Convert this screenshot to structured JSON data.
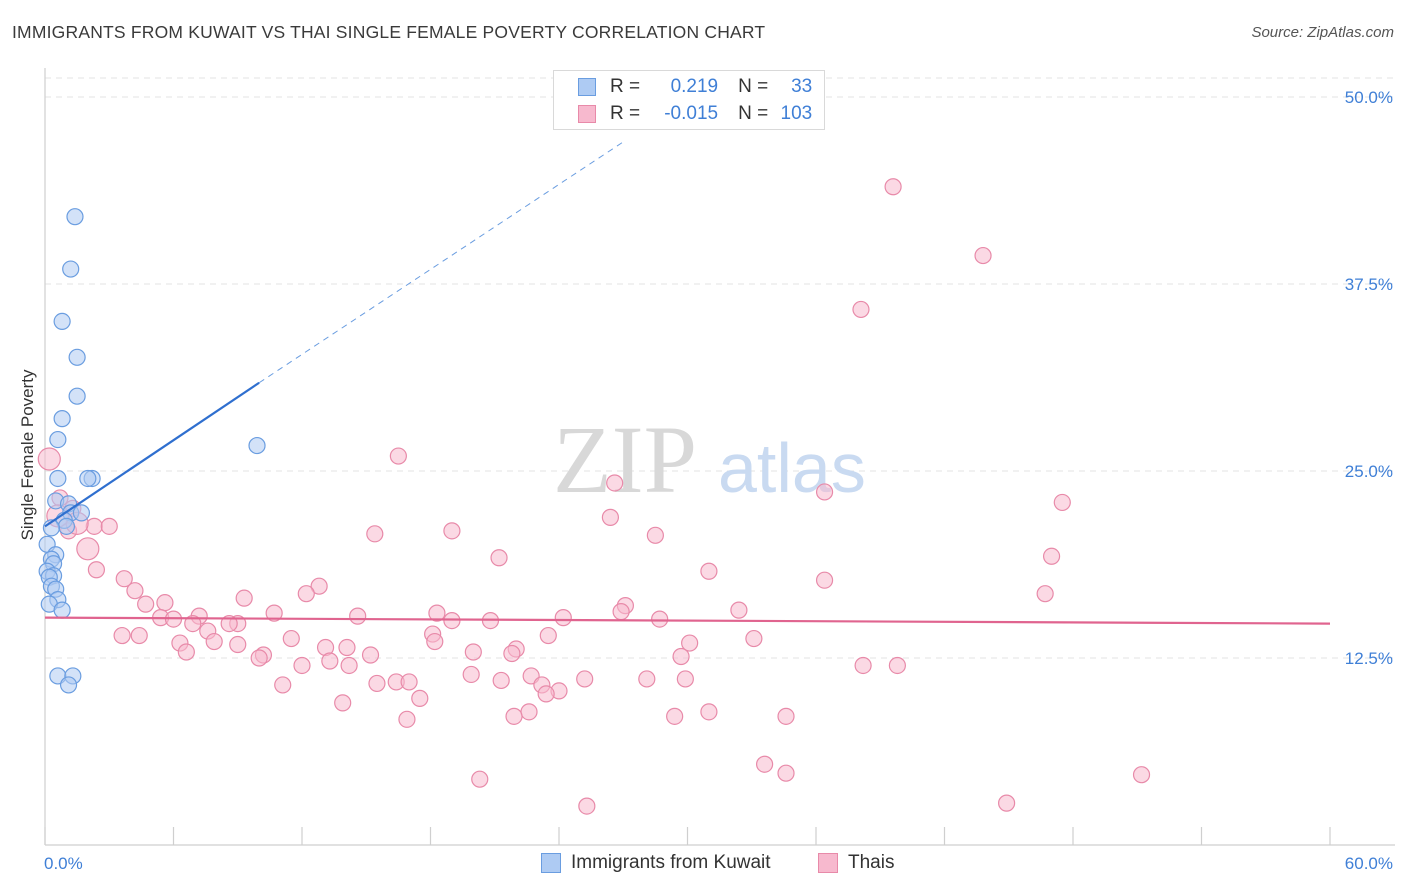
{
  "title": "IMMIGRANTS FROM KUWAIT VS THAI SINGLE FEMALE POVERTY CORRELATION CHART",
  "source": "Source: ZipAtlas.com",
  "watermark": {
    "zip": "ZIP",
    "atlas": "atlas"
  },
  "legend": {
    "rows": [
      {
        "r_label": "R =",
        "r_value": "0.219",
        "n_label": "N =",
        "n_value": "33",
        "fill": "#aecbf3",
        "stroke": "#6a9de0"
      },
      {
        "r_label": "R =",
        "r_value": "-0.015",
        "n_label": "N =",
        "n_value": "103",
        "fill": "#f7b9ce",
        "stroke": "#e88aa9"
      }
    ]
  },
  "bottom_legend": [
    {
      "label": "Immigrants from Kuwait",
      "fill": "#aecbf3",
      "stroke": "#6a9de0"
    },
    {
      "label": "Thais",
      "fill": "#f7b9ce",
      "stroke": "#e88aa9"
    }
  ],
  "chart_data": {
    "type": "scatter",
    "title": "IMMIGRANTS FROM KUWAIT VS THAI SINGLE FEMALE POVERTY CORRELATION CHART",
    "xlabel": "",
    "ylabel": "Single Female Poverty",
    "xlim": [
      0,
      60
    ],
    "ylim": [
      0,
      50
    ],
    "x_tick_labels": [
      "0.0%",
      "60.0%"
    ],
    "y_ticks": [
      12.5,
      25.0,
      37.5,
      50.0
    ],
    "y_tick_labels": [
      "12.5%",
      "25.0%",
      "37.5%",
      "50.0%"
    ],
    "grid": true,
    "legend_position": "top-center",
    "colors": {
      "kuwait": "#6a9de0",
      "kuwait_fill": "#aecbf3",
      "thai": "#e88aa9",
      "thai_fill": "#f7b9ce",
      "kuwait_line": "#2f6fcf",
      "thai_line": "#e0648f",
      "axis_label": "#3f7fd6"
    },
    "series": [
      {
        "name": "Immigrants from Kuwait",
        "points": [
          [
            1.4,
            42.0
          ],
          [
            1.2,
            38.5
          ],
          [
            0.8,
            35.0
          ],
          [
            1.5,
            32.6
          ],
          [
            1.5,
            30.0
          ],
          [
            0.8,
            28.5
          ],
          [
            0.6,
            27.1
          ],
          [
            9.9,
            26.7
          ],
          [
            2.2,
            24.5
          ],
          [
            0.6,
            24.5
          ],
          [
            2.0,
            24.5
          ],
          [
            0.5,
            23.0
          ],
          [
            1.1,
            22.8
          ],
          [
            1.2,
            22.2
          ],
          [
            1.7,
            22.2
          ],
          [
            0.9,
            21.7
          ],
          [
            1.0,
            21.3
          ],
          [
            0.3,
            21.2
          ],
          [
            0.1,
            20.1
          ],
          [
            0.5,
            19.4
          ],
          [
            0.3,
            19.1
          ],
          [
            0.4,
            18.8
          ],
          [
            0.1,
            18.3
          ],
          [
            0.4,
            18.0
          ],
          [
            0.2,
            17.9
          ],
          [
            0.3,
            17.3
          ],
          [
            0.5,
            17.1
          ],
          [
            0.6,
            16.4
          ],
          [
            0.2,
            16.1
          ],
          [
            0.8,
            15.7
          ],
          [
            0.6,
            11.3
          ],
          [
            1.3,
            11.3
          ],
          [
            1.1,
            10.7
          ]
        ],
        "trend": {
          "x0": 0.0,
          "y0": 21.3,
          "x1": 10.0,
          "y1": 30.9,
          "dashed_to_x": 27.0,
          "dashed_to_y": 47.0
        }
      },
      {
        "name": "Thais",
        "points": [
          [
            39.6,
            44.0
          ],
          [
            43.8,
            39.4
          ],
          [
            38.1,
            35.8
          ],
          [
            16.5,
            26.0
          ],
          [
            26.6,
            24.2
          ],
          [
            36.4,
            23.6
          ],
          [
            47.5,
            22.9
          ],
          [
            0.7,
            23.2
          ],
          [
            1.3,
            22.5
          ],
          [
            2.3,
            21.3
          ],
          [
            1.1,
            21.0
          ],
          [
            3.0,
            21.3
          ],
          [
            26.4,
            21.9
          ],
          [
            19.0,
            21.0
          ],
          [
            15.4,
            20.8
          ],
          [
            28.5,
            20.7
          ],
          [
            2.0,
            19.8
          ],
          [
            21.2,
            19.2
          ],
          [
            47.0,
            19.3
          ],
          [
            31.0,
            18.3
          ],
          [
            2.4,
            18.4
          ],
          [
            3.7,
            17.8
          ],
          [
            36.4,
            17.7
          ],
          [
            12.8,
            17.3
          ],
          [
            4.2,
            17.0
          ],
          [
            12.2,
            16.8
          ],
          [
            46.7,
            16.8
          ],
          [
            9.3,
            16.5
          ],
          [
            5.6,
            16.2
          ],
          [
            27.1,
            16.0
          ],
          [
            4.7,
            16.1
          ],
          [
            32.4,
            15.7
          ],
          [
            18.3,
            15.5
          ],
          [
            26.9,
            15.6
          ],
          [
            10.7,
            15.5
          ],
          [
            7.2,
            15.3
          ],
          [
            14.6,
            15.3
          ],
          [
            5.4,
            15.2
          ],
          [
            24.2,
            15.2
          ],
          [
            28.7,
            15.1
          ],
          [
            6.0,
            15.1
          ],
          [
            19.0,
            15.0
          ],
          [
            20.8,
            15.0
          ],
          [
            6.9,
            14.8
          ],
          [
            9.0,
            14.8
          ],
          [
            8.6,
            14.8
          ],
          [
            7.6,
            14.3
          ],
          [
            3.6,
            14.0
          ],
          [
            4.4,
            14.0
          ],
          [
            18.1,
            14.1
          ],
          [
            23.5,
            14.0
          ],
          [
            11.5,
            13.8
          ],
          [
            33.1,
            13.8
          ],
          [
            18.2,
            13.6
          ],
          [
            6.3,
            13.5
          ],
          [
            7.9,
            13.6
          ],
          [
            9.0,
            13.4
          ],
          [
            13.1,
            13.2
          ],
          [
            14.1,
            13.2
          ],
          [
            30.1,
            13.5
          ],
          [
            22.0,
            13.1
          ],
          [
            6.6,
            12.9
          ],
          [
            20.0,
            12.9
          ],
          [
            10.2,
            12.7
          ],
          [
            15.2,
            12.7
          ],
          [
            21.8,
            12.8
          ],
          [
            29.7,
            12.6
          ],
          [
            10.0,
            12.5
          ],
          [
            13.3,
            12.3
          ],
          [
            12.0,
            12.0
          ],
          [
            14.2,
            12.0
          ],
          [
            38.2,
            12.0
          ],
          [
            39.8,
            12.0
          ],
          [
            19.9,
            11.4
          ],
          [
            22.7,
            11.3
          ],
          [
            25.2,
            11.1
          ],
          [
            28.1,
            11.1
          ],
          [
            21.3,
            11.0
          ],
          [
            29.9,
            11.1
          ],
          [
            15.5,
            10.8
          ],
          [
            16.4,
            10.9
          ],
          [
            17.0,
            10.9
          ],
          [
            11.1,
            10.7
          ],
          [
            23.2,
            10.7
          ],
          [
            24.0,
            10.3
          ],
          [
            23.4,
            10.1
          ],
          [
            17.5,
            9.8
          ],
          [
            13.9,
            9.5
          ],
          [
            22.6,
            8.9
          ],
          [
            31.0,
            8.9
          ],
          [
            16.9,
            8.4
          ],
          [
            21.9,
            8.6
          ],
          [
            29.4,
            8.6
          ],
          [
            34.6,
            8.6
          ],
          [
            33.6,
            5.4
          ],
          [
            34.6,
            4.8
          ],
          [
            51.2,
            4.7
          ],
          [
            20.3,
            4.4
          ],
          [
            25.3,
            2.6
          ],
          [
            44.9,
            2.8
          ],
          [
            1.5,
            21.5
          ],
          [
            0.2,
            25.8
          ],
          [
            0.6,
            22.0
          ]
        ],
        "big_points": [
          [
            0.2,
            25.8
          ],
          [
            0.6,
            22.0
          ],
          [
            1.5,
            21.5
          ],
          [
            2.0,
            19.8
          ]
        ],
        "trend": {
          "x0": 0.0,
          "y0": 15.2,
          "x1": 60.0,
          "y1": 14.8
        }
      }
    ]
  }
}
